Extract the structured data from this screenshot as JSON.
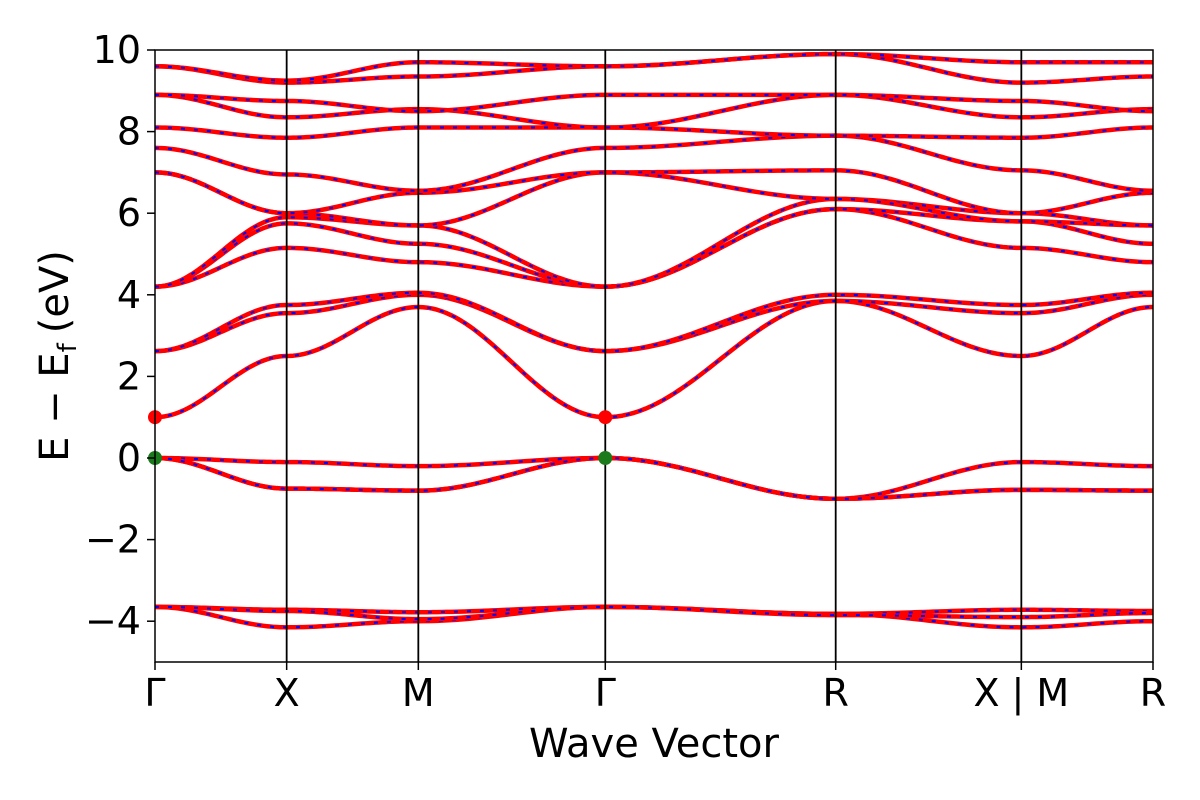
{
  "chart_data": {
    "type": "line",
    "title": "",
    "xlabel": "Wave Vector",
    "ylabel": "E − E",
    "ylabel_sub": "f",
    "ylabel_unit": "(eV)",
    "ylim": [
      -5,
      10
    ],
    "yticks": [
      -4,
      -2,
      0,
      2,
      4,
      6,
      8,
      10
    ],
    "ytick_labels": [
      "−4",
      "−2",
      "0",
      "2",
      "4",
      "6",
      "8",
      "10"
    ],
    "kpath": [
      "Γ",
      "X",
      "M",
      "Γ",
      "R",
      "X | M",
      "R"
    ],
    "kpath_positions": [
      0,
      1,
      2,
      3.42,
      5.17,
      6.58,
      7.58
    ],
    "xlim": [
      0,
      7.58
    ],
    "grid": false,
    "spin_up_color": "#ff0000",
    "spin_down_color": "#0000ff",
    "markers": [
      {
        "name": "CBM",
        "x": 0,
        "y": 1.0,
        "color": "#ff0000"
      },
      {
        "name": "CBM",
        "x": 3.42,
        "y": 1.0,
        "color": "#ff0000"
      },
      {
        "name": "VBM",
        "x": 0,
        "y": 0.0,
        "color": "#1b7a1b"
      },
      {
        "name": "VBM",
        "x": 3.42,
        "y": 0.0,
        "color": "#1b7a1b"
      }
    ],
    "bands": [
      [
        -3.65,
        -3.72,
        -3.78,
        -3.65,
        -3.82,
        -3.72,
        -3.75,
        -3.82
      ],
      [
        -3.65,
        -4.15,
        -4.0,
        -3.65,
        -3.82,
        -4.15,
        -4.0,
        -3.82
      ],
      [
        -3.65,
        -3.75,
        -3.95,
        -3.65,
        -3.85,
        -3.9,
        -3.8,
        -3.85
      ],
      [
        0.0,
        -0.75,
        -0.8,
        0.0,
        -1.0,
        -0.78,
        -0.8,
        -1.0
      ],
      [
        0.0,
        -0.1,
        -0.2,
        0.0,
        -1.0,
        -0.1,
        -0.2,
        -1.0
      ],
      [
        0.0,
        -0.75,
        -0.8,
        0.0,
        -1.0,
        -0.78,
        -0.8,
        -1.0
      ],
      [
        1.0,
        2.5,
        3.7,
        1.0,
        3.85,
        2.5,
        3.7,
        3.85
      ],
      [
        2.62,
        3.55,
        4.0,
        2.62,
        3.85,
        3.55,
        4.0,
        3.85
      ],
      [
        2.62,
        3.75,
        4.05,
        2.62,
        4.0,
        3.75,
        4.05,
        4.0
      ],
      [
        4.2,
        5.15,
        4.8,
        4.2,
        6.1,
        5.15,
        4.8,
        6.1
      ],
      [
        4.2,
        5.75,
        5.25,
        4.2,
        6.1,
        5.8,
        5.25,
        6.1
      ],
      [
        4.2,
        5.9,
        5.7,
        4.2,
        6.35,
        6.0,
        5.7,
        6.35
      ],
      [
        7.0,
        6.0,
        5.7,
        7.0,
        6.35,
        5.8,
        5.7,
        6.35
      ],
      [
        7.0,
        6.0,
        6.5,
        7.0,
        7.05,
        6.0,
        6.5,
        7.05
      ],
      [
        7.6,
        6.95,
        6.55,
        7.6,
        7.9,
        7.05,
        6.55,
        7.9
      ],
      [
        8.1,
        7.85,
        8.1,
        8.1,
        7.9,
        7.85,
        8.1,
        7.9
      ],
      [
        8.9,
        8.35,
        8.55,
        8.1,
        8.9,
        8.35,
        8.55,
        8.9
      ],
      [
        8.9,
        8.75,
        8.5,
        8.9,
        8.9,
        8.75,
        8.5,
        8.9
      ],
      [
        9.6,
        9.2,
        9.35,
        9.6,
        9.9,
        9.2,
        9.35,
        9.9
      ],
      [
        9.6,
        9.25,
        9.7,
        9.6,
        9.9,
        9.7,
        9.7,
        9.9
      ]
    ]
  }
}
